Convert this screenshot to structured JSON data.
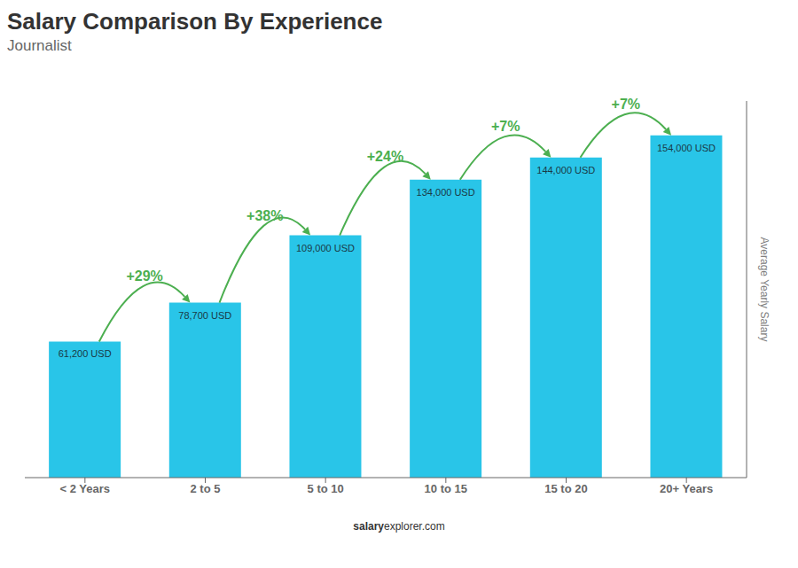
{
  "chart_data": {
    "type": "bar",
    "title": "Salary Comparison By Experience",
    "subtitle": "Journalist",
    "ylabel": "Average Yearly Salary",
    "categories": [
      "< 2 Years",
      "2 to 5",
      "5 to 10",
      "10 to 15",
      "15 to 20",
      "20+ Years"
    ],
    "values": [
      61200,
      78700,
      109000,
      134000,
      144000,
      154000
    ],
    "value_labels": [
      "61,200 USD",
      "78,700 USD",
      "109,000 USD",
      "134,000 USD",
      "144,000 USD",
      "154,000 USD"
    ],
    "data_labels": true,
    "annotations": [
      "+29%",
      "+38%",
      "+24%",
      "+7%",
      "+7%"
    ],
    "watermark": [
      "salary",
      "explorer.com"
    ],
    "color": "#29c5e8",
    "ylim": [
      0,
      169400
    ],
    "tick_labels": "x",
    "grid": false
  }
}
